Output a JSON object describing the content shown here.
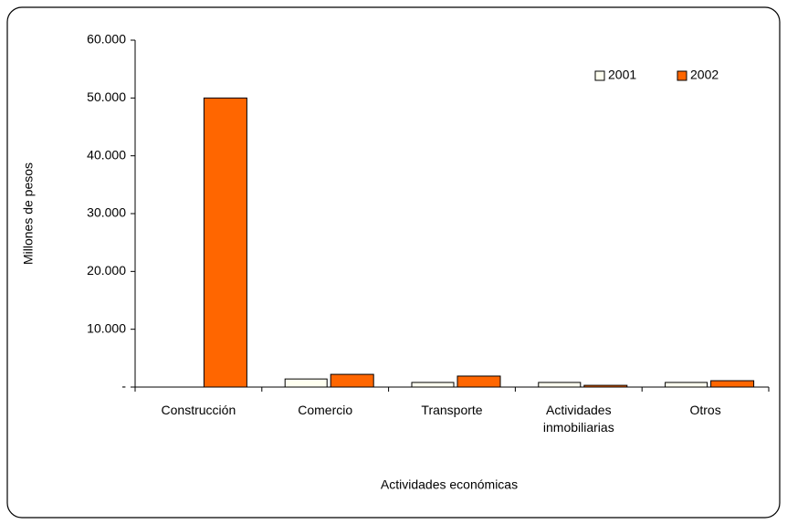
{
  "chart_data": {
    "type": "bar",
    "x_label": "Actividades económicas",
    "y_label": "Millones de pesos",
    "categories": [
      "Construcción",
      "Comercio",
      "Transporte",
      "Actividades inmobiliarias",
      "Otros"
    ],
    "series": [
      {
        "name": "2001",
        "color": "#fffff0",
        "values": [
          0,
          1400,
          800,
          800,
          800
        ]
      },
      {
        "name": "2002",
        "color": "#ff6600",
        "values": [
          50000,
          2200,
          1900,
          300,
          1100
        ]
      }
    ],
    "ylim": [
      0,
      60000
    ],
    "yticks": [
      {
        "value": 0,
        "label": "-"
      },
      {
        "value": 10000,
        "label": "10.000"
      },
      {
        "value": 20000,
        "label": "20.000"
      },
      {
        "value": 30000,
        "label": "30.000"
      },
      {
        "value": 40000,
        "label": "40.000"
      },
      {
        "value": 50000,
        "label": "50.000"
      },
      {
        "value": 60000,
        "label": "60.000"
      }
    ],
    "legend": "upper right"
  }
}
